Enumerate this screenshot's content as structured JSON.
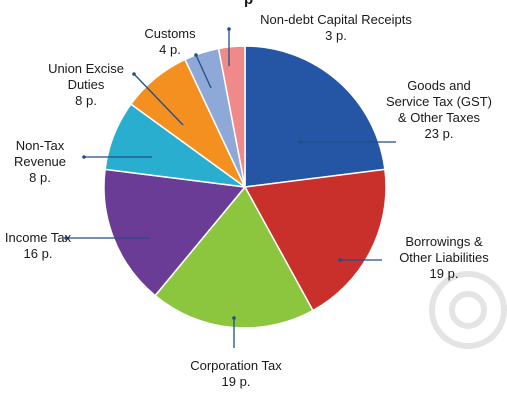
{
  "chart_data": {
    "type": "pie",
    "title_fragment": "p",
    "unit_suffix": "p.",
    "slices": [
      {
        "name": "Goods and Service Tax (GST) & Other Taxes",
        "name_lines": [
          "Goods and",
          "Service Tax (GST)",
          "& Other Taxes"
        ],
        "value": 23,
        "value_text": "23 p.",
        "color": "#2456a5"
      },
      {
        "name": "Borrowings & Other Liabilities",
        "name_lines": [
          "Borrowings &",
          "Other Liabilities"
        ],
        "value": 19,
        "value_text": "19 p.",
        "color": "#c9302c"
      },
      {
        "name": "Corporation Tax",
        "name_lines": [
          "Corporation Tax"
        ],
        "value": 19,
        "value_text": "19 p.",
        "color": "#8cc63f"
      },
      {
        "name": "Income Tax",
        "name_lines": [
          "Income Tax"
        ],
        "value": 16,
        "value_text": "16 p.",
        "color": "#6a3c96"
      },
      {
        "name": "Non-Tax Revenue",
        "name_lines": [
          "Non-Tax",
          "Revenue"
        ],
        "value": 8,
        "value_text": "8 p.",
        "color": "#2aaed0"
      },
      {
        "name": "Union Excise Duties",
        "name_lines": [
          "Union Excise",
          "Duties"
        ],
        "value": 8,
        "value_text": "8 p.",
        "color": "#f39020"
      },
      {
        "name": "Customs",
        "name_lines": [
          "Customs"
        ],
        "value": 4,
        "value_text": "4 p.",
        "color": "#8ea9d8"
      },
      {
        "name": "Non-debt Capital Receipts",
        "name_lines": [
          "Non-debt Capital Receipts"
        ],
        "value": 3,
        "value_text": "3 p.",
        "color": "#f08a8a"
      }
    ]
  }
}
